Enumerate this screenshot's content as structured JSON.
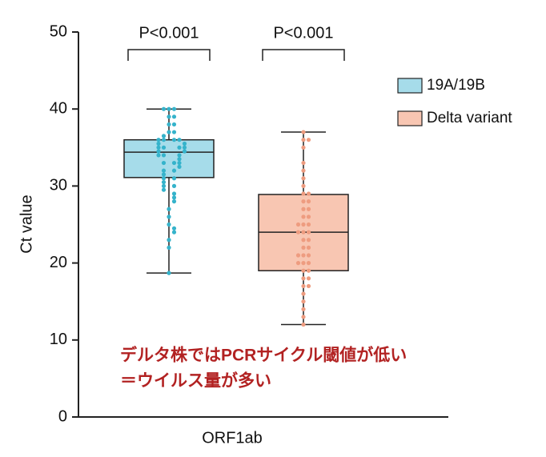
{
  "chart_data": {
    "type": "box",
    "ylabel": "Ct value",
    "categories": [
      "ORF1ab"
    ],
    "ylim": [
      0,
      50
    ],
    "yticks": [
      0,
      10,
      20,
      30,
      40,
      50
    ],
    "legend": "top-right",
    "series": [
      {
        "name": "19A/19B",
        "color": "#a6dcea",
        "point_color": "#35b3cb",
        "box": {
          "min": 18.7,
          "q1": 31.1,
          "median": 34.4,
          "q3": 36,
          "max": 40
        },
        "points": [
          40,
          40,
          40,
          39,
          39,
          38,
          38,
          37,
          37,
          36.5,
          36,
          36,
          36,
          36,
          35.5,
          35.5,
          35,
          35,
          35,
          35,
          34.5,
          34.5,
          34,
          34,
          34,
          33.5,
          33,
          33,
          33,
          32.5,
          32,
          32,
          31.5,
          31,
          31,
          30.5,
          30,
          30,
          29.5,
          29,
          28.5,
          28,
          27,
          26,
          25,
          24.5,
          24,
          23,
          22,
          18.7
        ],
        "annotation": "P<0.001"
      },
      {
        "name": "Delta variant",
        "color": "#f8c6b2",
        "point_color": "#ee9c80",
        "box": {
          "min": 12,
          "q1": 19,
          "median": 24,
          "q3": 28.9,
          "max": 37
        },
        "points": [
          37,
          36,
          36,
          35,
          33,
          32,
          31,
          30,
          29,
          29,
          28,
          28,
          27,
          27,
          26,
          26,
          25,
          25,
          25,
          24,
          24,
          24,
          23,
          23,
          22,
          22,
          21,
          21,
          21,
          20,
          20,
          20,
          19,
          19,
          18,
          18,
          17,
          17,
          16,
          15,
          14,
          13,
          12
        ],
        "annotation": "P<0.001"
      }
    ],
    "notes": [
      "デルタ株ではPCRサイクル閾値が低い",
      "＝ウイルス量が多い"
    ]
  }
}
